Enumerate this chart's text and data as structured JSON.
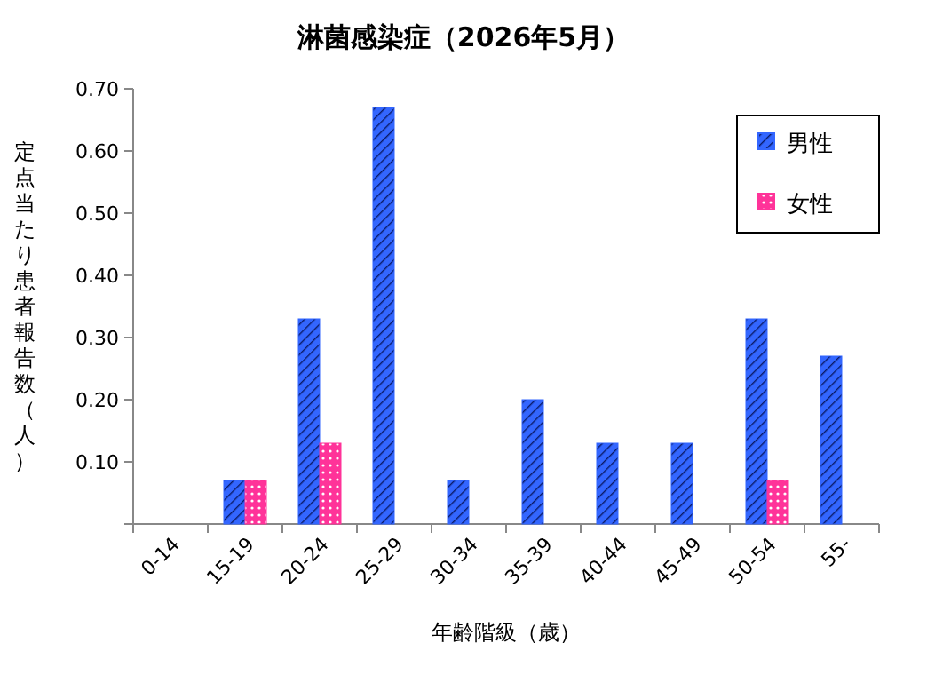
{
  "chart_data": {
    "type": "bar",
    "title": "淋菌感染症（2026年5月）",
    "xlabel": "年齢階級（歳）",
    "ylabel": "定点当たり患者報告数（人）",
    "categories": [
      "0-14",
      "15-19",
      "20-24",
      "25-29",
      "30-34",
      "35-39",
      "40-44",
      "45-49",
      "50-54",
      "55-"
    ],
    "series": [
      {
        "name": "男性",
        "color": "#3366ff",
        "values": [
          0,
          0.07,
          0.33,
          0.67,
          0.07,
          0.2,
          0.13,
          0.13,
          0.33,
          0.27
        ]
      },
      {
        "name": "女性",
        "color": "#ff3399",
        "values": [
          0,
          0.07,
          0.13,
          0,
          0,
          0,
          0,
          0,
          0.07,
          0
        ]
      }
    ],
    "ylim": [
      0,
      0.7
    ],
    "yticks": [
      {
        "value": 0,
        "label": null
      },
      {
        "value": 0.1,
        "label": "0.10"
      },
      {
        "value": 0.2,
        "label": "0.20"
      },
      {
        "value": 0.3,
        "label": "0.30"
      },
      {
        "value": 0.4,
        "label": "0.40"
      },
      {
        "value": 0.5,
        "label": "0.50"
      },
      {
        "value": 0.6,
        "label": "0.60"
      },
      {
        "value": 0.7,
        "label": "0.70"
      }
    ],
    "legend": "top right",
    "grid": false
  }
}
